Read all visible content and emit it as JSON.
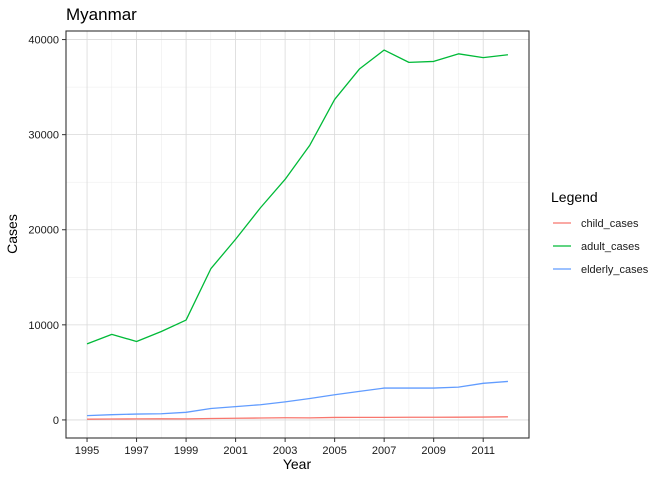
{
  "chart_data": {
    "type": "line",
    "title": "Myanmar",
    "xlabel": "Year",
    "ylabel": "Cases",
    "xlim": [
      1994.15,
      2012.85
    ],
    "ylim": [
      -1900,
      40900
    ],
    "x_ticks": [
      1995,
      1997,
      1999,
      2001,
      2003,
      2005,
      2007,
      2009,
      2011
    ],
    "y_ticks": [
      0,
      10000,
      20000,
      30000,
      40000
    ],
    "grid": true,
    "legend_title": "Legend",
    "legend_position": "right",
    "x": [
      1995,
      1996,
      1997,
      1998,
      1999,
      2000,
      2001,
      2002,
      2003,
      2004,
      2005,
      2006,
      2007,
      2008,
      2009,
      2010,
      2011,
      2012
    ],
    "series": [
      {
        "name": "child_cases",
        "color": "#F8766D",
        "values": [
          80,
          100,
          110,
          120,
          110,
          150,
          180,
          200,
          230,
          220,
          260,
          270,
          270,
          280,
          280,
          290,
          300,
          330
        ]
      },
      {
        "name": "adult_cases",
        "color": "#00BA38",
        "values": [
          8000,
          9000,
          8250,
          9300,
          10500,
          15900,
          19000,
          22300,
          25300,
          28900,
          33700,
          36900,
          38900,
          37600,
          37700,
          38500,
          38100,
          38400
        ]
      },
      {
        "name": "elderly_cases",
        "color": "#619CFF",
        "values": [
          450,
          550,
          620,
          650,
          800,
          1200,
          1400,
          1600,
          1900,
          2250,
          2650,
          3000,
          3350,
          3350,
          3350,
          3450,
          3850,
          4050
        ]
      }
    ]
  }
}
